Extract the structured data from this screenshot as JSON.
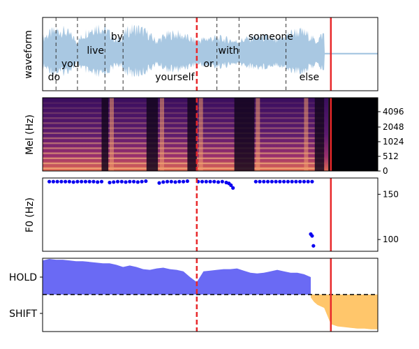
{
  "chart_data": [
    {
      "panel": "waveform",
      "type": "line",
      "ylabel": "waveform",
      "x_range_s": [
        0,
        5.0
      ],
      "speech_end_s": 4.2,
      "words": [
        {
          "text": "do",
          "t": 0.08,
          "level": "bottom"
        },
        {
          "text": "you",
          "t": 0.28,
          "level": "mid"
        },
        {
          "text": "live",
          "t": 0.66,
          "level": "high"
        },
        {
          "text": "by",
          "t": 1.02,
          "level": "top"
        },
        {
          "text": "yourself",
          "t": 1.68,
          "level": "bottom"
        },
        {
          "text": "or",
          "t": 2.4,
          "level": "mid"
        },
        {
          "text": "with",
          "t": 2.62,
          "level": "high"
        },
        {
          "text": "someone",
          "t": 3.07,
          "level": "top"
        },
        {
          "text": "else",
          "t": 3.83,
          "level": "bottom"
        }
      ],
      "word_boundaries_s": [
        0.2,
        0.52,
        0.93,
        1.2,
        2.6,
        2.93,
        3.63
      ],
      "dashed_red_line_s": 2.3,
      "solid_red_line_s": 4.3
    },
    {
      "panel": "mel",
      "type": "heatmap",
      "ylabel": "Mel (Hz)",
      "yticks": [
        "0",
        "512",
        "1024",
        "2048",
        "4096"
      ],
      "dashed_red_line_s": 2.3,
      "solid_red_line_s": 4.3
    },
    {
      "panel": "f0",
      "type": "scatter",
      "ylabel": "F0 (Hz)",
      "ylim": [
        87,
        168
      ],
      "yticks": [
        "100",
        "150"
      ],
      "segments": [
        {
          "t": [
            0.1,
            0.16,
            0.22,
            0.28,
            0.34,
            0.4,
            0.46,
            0.52,
            0.58,
            0.64,
            0.7,
            0.76,
            0.82,
            0.88
          ],
          "f0": [
            164,
            164,
            164,
            164,
            164,
            164,
            163.5,
            164,
            164,
            164,
            164,
            164,
            163.5,
            164
          ]
        },
        {
          "t": [
            1.0,
            1.06,
            1.12,
            1.18,
            1.24,
            1.3,
            1.36,
            1.42,
            1.48,
            1.54
          ],
          "f0": [
            163,
            163.5,
            164,
            164,
            163.5,
            164,
            164,
            163.5,
            164,
            164.5
          ]
        },
        {
          "t": [
            1.74,
            1.8,
            1.86,
            1.92,
            1.98,
            2.04,
            2.1,
            2.16
          ],
          "f0": [
            162.5,
            163.5,
            164,
            164,
            163.5,
            164,
            164,
            164.5
          ]
        },
        {
          "t": [
            2.32,
            2.38,
            2.44,
            2.5,
            2.56,
            2.62,
            2.68,
            2.74,
            2.78,
            2.81,
            2.84
          ],
          "f0": [
            164,
            164,
            164,
            164,
            164,
            163.5,
            164,
            163,
            162,
            160,
            157
          ]
        },
        {
          "t": [
            3.18,
            3.24,
            3.3,
            3.36,
            3.42,
            3.48,
            3.54,
            3.6,
            3.66,
            3.72,
            3.78,
            3.84,
            3.9,
            3.96,
            4.02
          ],
          "f0": [
            164,
            164,
            164,
            164,
            164,
            164,
            164,
            164,
            164,
            164,
            164,
            164,
            164,
            164,
            164
          ]
        },
        {
          "t": [
            4.0,
            4.02,
            4.04
          ],
          "f0": [
            106,
            104,
            93
          ]
        }
      ],
      "dashed_red_line_s": 2.3,
      "solid_red_line_s": 4.3
    },
    {
      "panel": "vap",
      "type": "area",
      "categories": [
        "HOLD",
        "SHIFT"
      ],
      "threshold": 0.5,
      "hold_series": {
        "t": [
          0.0,
          0.1,
          0.2,
          0.3,
          0.4,
          0.5,
          0.6,
          0.7,
          0.8,
          0.9,
          1.0,
          1.1,
          1.2,
          1.3,
          1.4,
          1.5,
          1.6,
          1.7,
          1.8,
          1.9,
          2.0,
          2.1,
          2.2,
          2.3,
          2.4,
          2.5,
          2.6,
          2.7,
          2.8,
          2.9,
          3.0,
          3.1,
          3.2,
          3.3,
          3.4,
          3.5,
          3.6,
          3.7,
          3.8,
          3.9,
          4.0
        ],
        "p": [
          0.97,
          0.99,
          0.98,
          0.98,
          0.97,
          0.96,
          0.96,
          0.95,
          0.94,
          0.93,
          0.93,
          0.91,
          0.88,
          0.9,
          0.88,
          0.85,
          0.84,
          0.86,
          0.87,
          0.85,
          0.84,
          0.82,
          0.74,
          0.67,
          0.82,
          0.83,
          0.84,
          0.85,
          0.85,
          0.86,
          0.83,
          0.8,
          0.79,
          0.8,
          0.82,
          0.84,
          0.82,
          0.8,
          0.8,
          0.78,
          0.74
        ]
      },
      "shift_series": {
        "t": [
          4.0,
          4.05,
          4.1,
          4.2,
          4.3,
          4.4,
          4.5,
          4.6,
          4.7,
          4.8,
          4.9,
          5.0
        ],
        "p": [
          0.54,
          0.6,
          0.64,
          0.68,
          0.9,
          0.93,
          0.94,
          0.95,
          0.96,
          0.96,
          0.97,
          0.97
        ]
      },
      "colors": {
        "hold": "#6a6af4",
        "shift": "#ffc66b",
        "threshold": "#000000"
      },
      "dashed_red_line_s": 2.3,
      "solid_red_line_s": 4.3
    }
  ]
}
